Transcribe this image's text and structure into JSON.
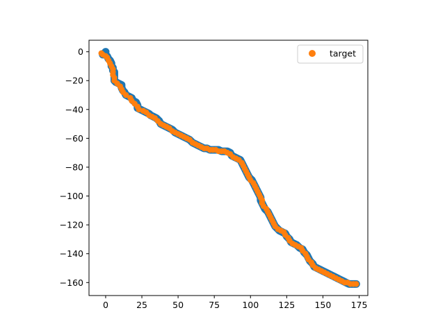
{
  "chart_data": {
    "type": "scatter",
    "title": "",
    "xlabel": "",
    "ylabel": "",
    "xlim": [
      -11.5,
      181.0
    ],
    "ylim": [
      -169.0,
      8.0
    ],
    "x_ticks": [
      0,
      25,
      50,
      75,
      100,
      125,
      150,
      175
    ],
    "y_ticks": [
      0,
      -20,
      -40,
      -60,
      -80,
      -100,
      -120,
      -140,
      -160
    ],
    "x_tick_labels": [
      "0",
      "25",
      "50",
      "75",
      "100",
      "125",
      "150",
      "175"
    ],
    "y_tick_labels": [
      "0",
      "−20",
      "−40",
      "−60",
      "−80",
      "−100",
      "−120",
      "−140",
      "−160"
    ],
    "legend_position": "top-right",
    "grid": false,
    "series": [
      {
        "name": "",
        "color": "#1f77b4",
        "points": [
          [
            0,
            0
          ],
          [
            -1,
            -1
          ],
          [
            -2,
            -2
          ],
          [
            0,
            -2
          ],
          [
            1,
            -3
          ],
          [
            2,
            -5
          ],
          [
            3,
            -6
          ],
          [
            4,
            -8
          ],
          [
            4,
            -10
          ],
          [
            5,
            -11
          ],
          [
            5,
            -13
          ],
          [
            6,
            -14
          ],
          [
            6,
            -16
          ],
          [
            6,
            -18
          ],
          [
            6,
            -20
          ],
          [
            7,
            -21
          ],
          [
            9,
            -22
          ],
          [
            11,
            -23
          ],
          [
            11,
            -25
          ],
          [
            12,
            -27
          ],
          [
            13,
            -28
          ],
          [
            14,
            -30
          ],
          [
            16,
            -31
          ],
          [
            18,
            -32
          ],
          [
            19,
            -34
          ],
          [
            21,
            -35
          ],
          [
            22,
            -37
          ],
          [
            22,
            -39
          ],
          [
            24,
            -40
          ],
          [
            26,
            -41
          ],
          [
            28,
            -42
          ],
          [
            30,
            -43
          ],
          [
            31,
            -44
          ],
          [
            33,
            -45
          ],
          [
            35,
            -46
          ],
          [
            37,
            -48
          ],
          [
            38,
            -50
          ],
          [
            40,
            -51
          ],
          [
            42,
            -52
          ],
          [
            44,
            -53
          ],
          [
            46,
            -54
          ],
          [
            48,
            -56
          ],
          [
            50,
            -57
          ],
          [
            52,
            -58
          ],
          [
            54,
            -59
          ],
          [
            56,
            -60
          ],
          [
            58,
            -61
          ],
          [
            60,
            -63
          ],
          [
            62,
            -64
          ],
          [
            64,
            -65
          ],
          [
            66,
            -66
          ],
          [
            68,
            -67
          ],
          [
            70,
            -67
          ],
          [
            72,
            -68
          ],
          [
            74,
            -68
          ],
          [
            76,
            -68
          ],
          [
            78,
            -68
          ],
          [
            80,
            -69
          ],
          [
            82,
            -69
          ],
          [
            84,
            -69
          ],
          [
            86,
            -70
          ],
          [
            87,
            -72
          ],
          [
            89,
            -73
          ],
          [
            91,
            -74
          ],
          [
            93,
            -75
          ],
          [
            94,
            -77
          ],
          [
            95,
            -79
          ],
          [
            96,
            -81
          ],
          [
            97,
            -83
          ],
          [
            98,
            -85
          ],
          [
            99,
            -87
          ],
          [
            101,
            -89
          ],
          [
            102,
            -91
          ],
          [
            103,
            -93
          ],
          [
            104,
            -95
          ],
          [
            105,
            -97
          ],
          [
            106,
            -99
          ],
          [
            107,
            -101
          ],
          [
            107,
            -103
          ],
          [
            108,
            -105
          ],
          [
            109,
            -107
          ],
          [
            110,
            -109
          ],
          [
            112,
            -111
          ],
          [
            113,
            -113
          ],
          [
            114,
            -115
          ],
          [
            115,
            -117
          ],
          [
            116,
            -119
          ],
          [
            117,
            -121
          ],
          [
            119,
            -123
          ],
          [
            120,
            -124
          ],
          [
            122,
            -125
          ],
          [
            124,
            -126
          ],
          [
            125,
            -128
          ],
          [
            127,
            -130
          ],
          [
            128,
            -132
          ],
          [
            130,
            -133
          ],
          [
            132,
            -134
          ],
          [
            134,
            -136
          ],
          [
            136,
            -137
          ],
          [
            137,
            -139
          ],
          [
            139,
            -141
          ],
          [
            140,
            -143
          ],
          [
            141,
            -145
          ],
          [
            143,
            -147
          ],
          [
            144,
            -149
          ],
          [
            146,
            -150
          ],
          [
            148,
            -151
          ],
          [
            150,
            -152
          ],
          [
            152,
            -153
          ],
          [
            154,
            -154
          ],
          [
            156,
            -155
          ],
          [
            158,
            -156
          ],
          [
            160,
            -157
          ],
          [
            162,
            -158
          ],
          [
            164,
            -159
          ],
          [
            166,
            -160
          ],
          [
            168,
            -161
          ],
          [
            170,
            -161
          ],
          [
            172,
            -161
          ],
          [
            173,
            -161
          ]
        ]
      },
      {
        "name": "target",
        "color": "#ff7f0e",
        "points": [
          [
            -3,
            -1
          ],
          [
            -2,
            -2
          ],
          [
            0,
            -3
          ],
          [
            1,
            -4
          ],
          [
            2,
            -6
          ],
          [
            3,
            -8
          ],
          [
            4,
            -10
          ],
          [
            5,
            -12
          ],
          [
            5,
            -14
          ],
          [
            5,
            -16
          ],
          [
            6,
            -18
          ],
          [
            6,
            -20
          ],
          [
            8,
            -22
          ],
          [
            10,
            -24
          ],
          [
            11,
            -26
          ],
          [
            12,
            -28
          ],
          [
            14,
            -30
          ],
          [
            17,
            -32
          ],
          [
            18,
            -34
          ],
          [
            20,
            -36
          ],
          [
            22,
            -38
          ],
          [
            23,
            -40
          ],
          [
            26,
            -41
          ],
          [
            28,
            -42
          ],
          [
            30,
            -44
          ],
          [
            32,
            -45
          ],
          [
            34,
            -46
          ],
          [
            36,
            -48
          ],
          [
            38,
            -50
          ],
          [
            40,
            -51
          ],
          [
            42,
            -52
          ],
          [
            44,
            -53
          ],
          [
            46,
            -55
          ],
          [
            48,
            -56
          ],
          [
            50,
            -57
          ],
          [
            52,
            -58
          ],
          [
            54,
            -59
          ],
          [
            56,
            -60
          ],
          [
            58,
            -61
          ],
          [
            60,
            -63
          ],
          [
            62,
            -64
          ],
          [
            64,
            -65
          ],
          [
            66,
            -66
          ],
          [
            68,
            -67
          ],
          [
            70,
            -67
          ],
          [
            72,
            -68
          ],
          [
            74,
            -68
          ],
          [
            76,
            -68
          ],
          [
            78,
            -69
          ],
          [
            80,
            -69
          ],
          [
            82,
            -69
          ],
          [
            84,
            -70
          ],
          [
            86,
            -71
          ],
          [
            88,
            -73
          ],
          [
            90,
            -74
          ],
          [
            92,
            -75
          ],
          [
            94,
            -77
          ],
          [
            95,
            -79
          ],
          [
            96,
            -81
          ],
          [
            97,
            -83
          ],
          [
            98,
            -85
          ],
          [
            99,
            -87
          ],
          [
            100,
            -89
          ],
          [
            102,
            -91
          ],
          [
            103,
            -93
          ],
          [
            104,
            -95
          ],
          [
            105,
            -97
          ],
          [
            106,
            -99
          ],
          [
            107,
            -101
          ],
          [
            108,
            -103
          ],
          [
            108,
            -105
          ],
          [
            109,
            -107
          ],
          [
            111,
            -109
          ],
          [
            112,
            -111
          ],
          [
            113,
            -113
          ],
          [
            114,
            -115
          ],
          [
            115,
            -117
          ],
          [
            116,
            -119
          ],
          [
            117,
            -121
          ],
          [
            119,
            -123
          ],
          [
            121,
            -124
          ],
          [
            123,
            -125
          ],
          [
            124,
            -127
          ],
          [
            126,
            -129
          ],
          [
            127,
            -131
          ],
          [
            129,
            -133
          ],
          [
            131,
            -134
          ],
          [
            133,
            -135
          ],
          [
            135,
            -136
          ],
          [
            136,
            -138
          ],
          [
            138,
            -140
          ],
          [
            139,
            -142
          ],
          [
            140,
            -144
          ],
          [
            142,
            -146
          ],
          [
            143,
            -148
          ],
          [
            145,
            -150
          ],
          [
            147,
            -151
          ],
          [
            149,
            -152
          ],
          [
            151,
            -153
          ],
          [
            153,
            -154
          ],
          [
            155,
            -155
          ],
          [
            157,
            -156
          ],
          [
            159,
            -157
          ],
          [
            161,
            -158
          ],
          [
            163,
            -159
          ],
          [
            165,
            -160
          ],
          [
            167,
            -160
          ],
          [
            169,
            -161
          ],
          [
            171,
            -161
          ],
          [
            173,
            -161
          ]
        ]
      }
    ]
  }
}
